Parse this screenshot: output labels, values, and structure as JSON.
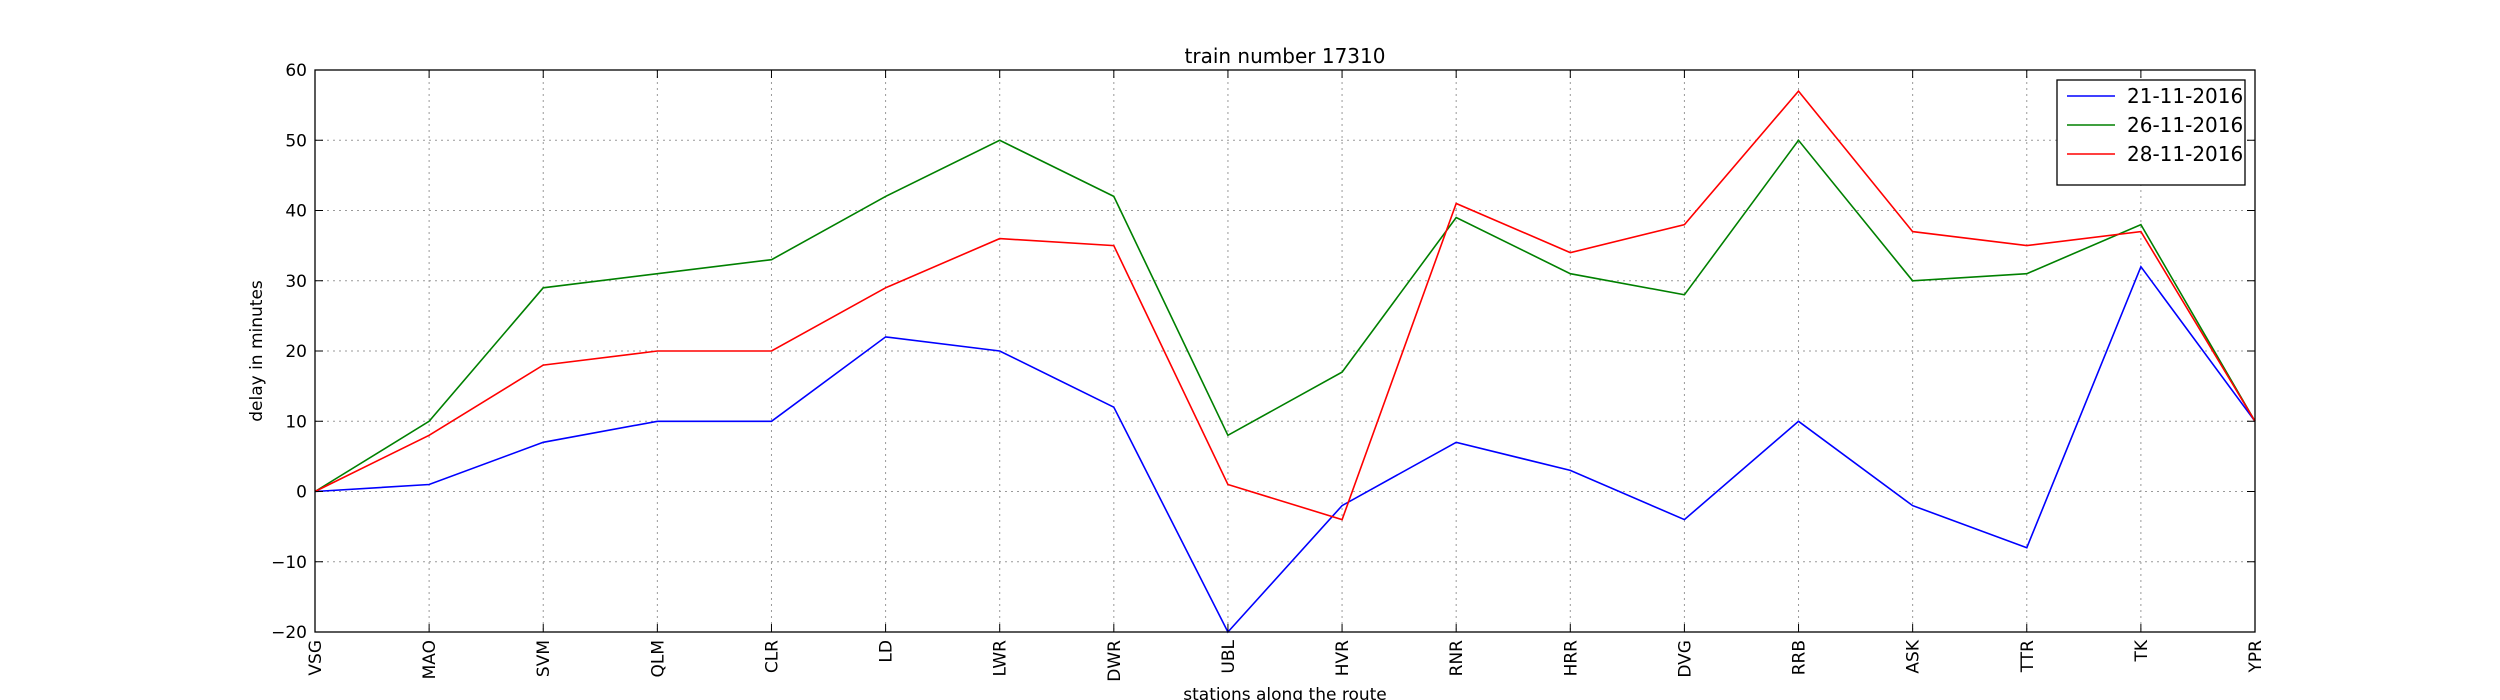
{
  "chart_data": {
    "type": "line",
    "title": "train number 17310",
    "xlabel": "stations along the route",
    "ylabel": "delay in minutes",
    "categories": [
      "VSG",
      "MAO",
      "SVM",
      "QLM",
      "CLR",
      "LD",
      "LWR",
      "DWR",
      "UBL",
      "HVR",
      "RNR",
      "HRR",
      "DVG",
      "RRB",
      "ASK",
      "TTR",
      "TK",
      "YPR"
    ],
    "ylim": [
      -20,
      60
    ],
    "yticks": [
      "−20",
      "−10",
      "0",
      "10",
      "20",
      "30",
      "40",
      "50",
      "60"
    ],
    "grid": true,
    "legend_position": "top-right",
    "series": [
      {
        "name": "21-11-2016",
        "color": "#0000ff",
        "values": [
          0,
          1,
          7,
          10,
          10,
          22,
          20,
          12,
          -20,
          -2,
          7,
          3,
          -4,
          10,
          -2,
          -8,
          32,
          10
        ]
      },
      {
        "name": "26-11-2016",
        "color": "#008000",
        "values": [
          0,
          10,
          29,
          31,
          33,
          42,
          50,
          42,
          8,
          17,
          39,
          31,
          28,
          50,
          30,
          31,
          38,
          10
        ]
      },
      {
        "name": "28-11-2016",
        "color": "#ff0000",
        "values": [
          0,
          8,
          18,
          20,
          20,
          29,
          36,
          35,
          1,
          -4,
          41,
          34,
          38,
          57,
          37,
          35,
          37,
          10
        ]
      }
    ]
  }
}
